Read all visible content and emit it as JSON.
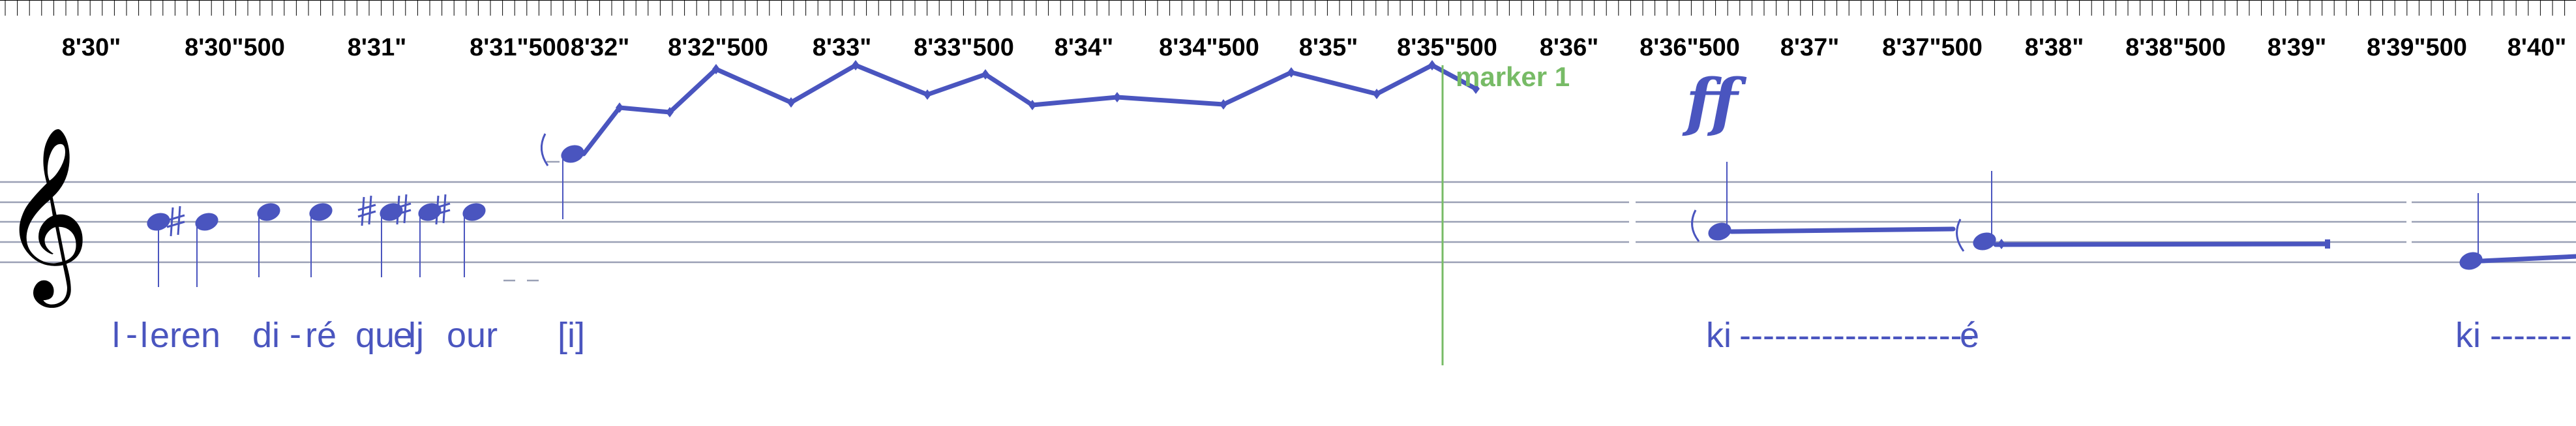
{
  "timeline": {
    "labels": [
      "8'30\"",
      "8'30\"500",
      "8'31\"",
      "8'31\"500",
      "8'32\"",
      "8'32\"500",
      "8'33\"",
      "8'33\"500",
      "8'34\"",
      "8'34\"500",
      "8'35\"",
      "8'35\"500",
      "8'36\"",
      "8'36\"500",
      "8'37\"",
      "8'37\"500",
      "8'38\"",
      "8'38\"500",
      "8'39\"",
      "8'39\"500",
      "8'40\""
    ]
  },
  "marker": {
    "label": "marker 1"
  },
  "dynamic": {
    "label": "ff"
  },
  "clef": {
    "glyph": "𝄞"
  },
  "lyrics": {
    "a": "l",
    "b": "-",
    "c": "l",
    "d": "eren",
    "e": "di",
    "f": "-",
    "g": "ré",
    "h": "qu",
    "i": "e",
    "j": "lj",
    "k": "our",
    "l": "[i]",
    "m": "ki",
    "n": "--------------------",
    "o": "é",
    "p": "ki",
    "q": "-------"
  },
  "colors": {
    "notes": "#4a55bf",
    "marker": "#77bb66",
    "staff": "#9aa0b5",
    "ruler": "#000000"
  }
}
